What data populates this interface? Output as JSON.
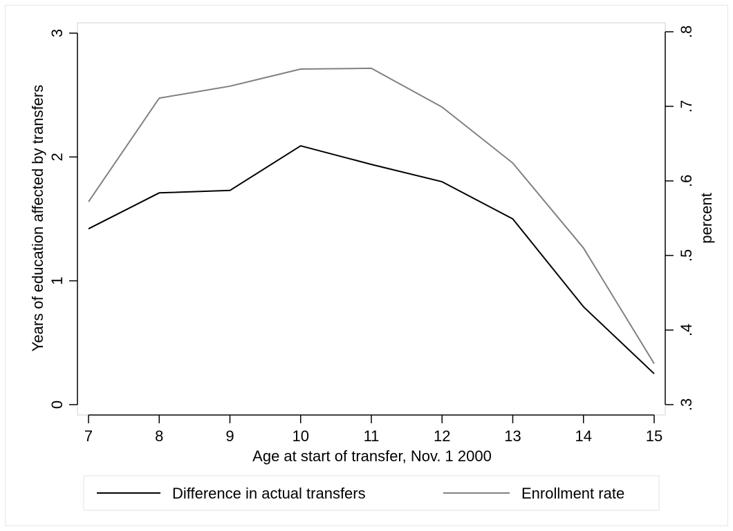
{
  "chart_data": {
    "type": "line",
    "xlabel": "Age at start of transfer, Nov. 1 2000",
    "ylabel_left": "Years of education affected by transfers",
    "ylabel_right": "percent",
    "x": [
      7,
      8,
      9,
      10,
      11,
      12,
      13,
      14,
      15
    ],
    "xlim": [
      7,
      15
    ],
    "ylim_left": [
      0,
      3
    ],
    "ylim_right": [
      0.3,
      0.8
    ],
    "x_ticks": [
      "7",
      "8",
      "9",
      "10",
      "11",
      "12",
      "13",
      "14",
      "15"
    ],
    "y_ticks_left": [
      "0",
      "1",
      "2",
      "3"
    ],
    "y_ticks_right": [
      ".3",
      ".4",
      ".5",
      ".6",
      ".7",
      ".8"
    ],
    "series": [
      {
        "name": "Difference in actual transfers",
        "axis": "left",
        "color": "#000000",
        "values": [
          1.42,
          1.71,
          1.73,
          2.09,
          1.94,
          1.8,
          1.5,
          0.79,
          0.25
        ]
      },
      {
        "name": "Enrollment rate",
        "axis": "right",
        "color": "#808080",
        "values": [
          0.572,
          0.711,
          0.727,
          0.75,
          0.751,
          0.699,
          0.624,
          0.51,
          0.355
        ]
      }
    ],
    "legend_position": "bottom",
    "grid": false
  }
}
